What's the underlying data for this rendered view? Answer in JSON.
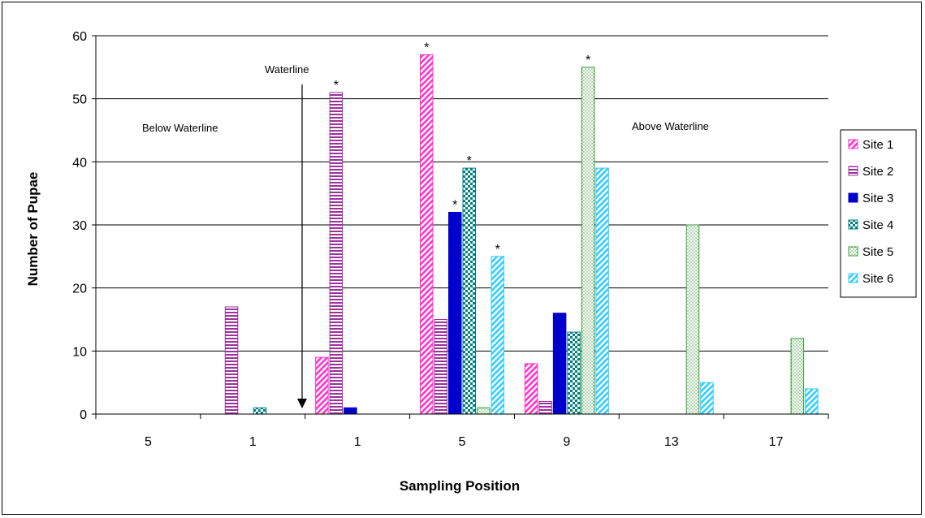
{
  "chart_data": {
    "type": "bar",
    "title": "",
    "xlabel": "Sampling Position",
    "ylabel": "Number of Pupae",
    "ylim": [
      0,
      60
    ],
    "yticks": [
      0,
      10,
      20,
      30,
      40,
      50,
      60
    ],
    "grid": true,
    "legend_position": "right",
    "categories": [
      "5",
      "1",
      "1",
      "5",
      "9",
      "13",
      "17"
    ],
    "series": [
      {
        "name": "Site 1",
        "color": "#ff33cc",
        "pattern": "diagonal-stripes",
        "values": [
          0,
          0,
          9,
          57,
          8,
          0,
          0
        ]
      },
      {
        "name": "Site 2",
        "color": "#993399",
        "pattern": "horizontal-stripes",
        "values": [
          0,
          17,
          51,
          15,
          2,
          0,
          0
        ]
      },
      {
        "name": "Site 3",
        "color": "#0000cc",
        "pattern": "solid",
        "values": [
          0,
          0,
          1,
          32,
          16,
          0,
          0
        ]
      },
      {
        "name": "Site 4",
        "color": "#008080",
        "pattern": "checker",
        "values": [
          0,
          1,
          0,
          39,
          13,
          0,
          0
        ]
      },
      {
        "name": "Site 5",
        "color": "#339933",
        "pattern": "dots",
        "values": [
          0,
          0,
          0,
          1,
          55,
          30,
          12
        ]
      },
      {
        "name": "Site 6",
        "color": "#33ccff",
        "pattern": "diagonal-stripes",
        "values": [
          0,
          0,
          0,
          25,
          39,
          5,
          4
        ]
      }
    ],
    "significance_markers": [
      {
        "category_index": 2,
        "series_index": 1,
        "label": "*"
      },
      {
        "category_index": 3,
        "series_index": 0,
        "label": "*"
      },
      {
        "category_index": 3,
        "series_index": 2,
        "label": "*"
      },
      {
        "category_index": 3,
        "series_index": 3,
        "label": "*"
      },
      {
        "category_index": 3,
        "series_index": 5,
        "label": "*"
      },
      {
        "category_index": 4,
        "series_index": 4,
        "label": "*"
      }
    ],
    "annotations": {
      "below": "Below Waterline",
      "above": "Above Waterline",
      "waterline": "Waterline"
    }
  }
}
